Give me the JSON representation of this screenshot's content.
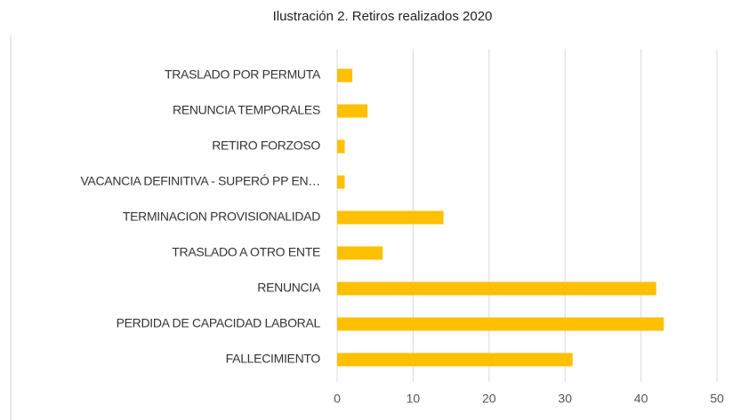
{
  "chart_data": {
    "type": "hbar",
    "title": "Ilustración 2. Retiros realizados 2020",
    "categories": [
      "TRASLADO POR PERMUTA",
      "RENUNCIA  TEMPORALES",
      "RETIRO FORZOSO",
      "VACANCIA DEFINITIVA - SUPERÓ PP EN…",
      "TERMINACION PROVISIONALIDAD",
      "TRASLADO A OTRO ENTE",
      "RENUNCIA",
      "PERDIDA DE CAPACIDAD LABORAL",
      "FALLECIMIENTO"
    ],
    "values": [
      2,
      4,
      1,
      1,
      14,
      6,
      42,
      43,
      31
    ],
    "color": "#ffc000",
    "xlim": [
      0,
      50
    ],
    "xticks": [
      0,
      10,
      20,
      30,
      40,
      50
    ],
    "grid": true
  }
}
